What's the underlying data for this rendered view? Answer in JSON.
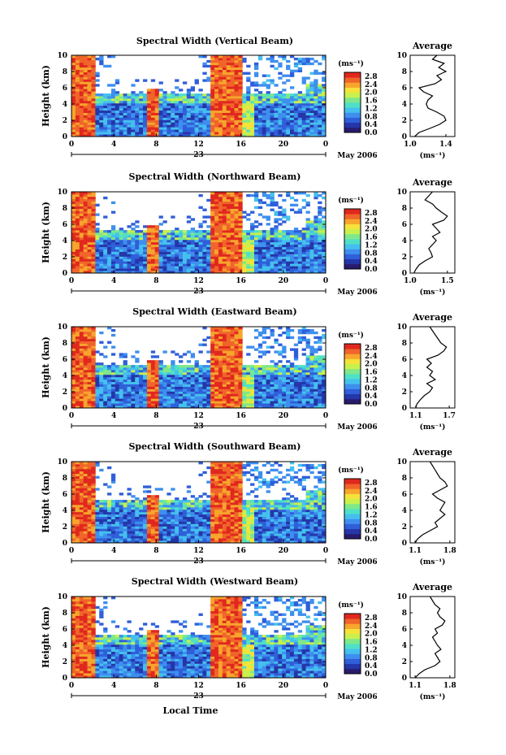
{
  "figure": {
    "x_axis_label": "Local Time",
    "date_label": "May 2006",
    "day_label": "23",
    "unit_label": "(ms⁻¹)",
    "average_title": "Average",
    "y_axis_label": "Height (km)"
  },
  "colors": {
    "colormap": [
      "#2a1a6b",
      "#2436a8",
      "#2f5fd9",
      "#3e8fee",
      "#45c0ee",
      "#4fe0c8",
      "#7ee88a",
      "#c8f04e",
      "#f5e23a",
      "#f7a52c",
      "#f0652a",
      "#e0281e"
    ]
  },
  "chart_data": [
    {
      "type": "heatmap",
      "title": "Spectral Width (Vertical Beam)",
      "xlabel": "",
      "ylabel": "Height (km)",
      "xlim": [
        0,
        24
      ],
      "ylim": [
        0,
        10
      ],
      "xticks": [
        "0",
        "4",
        "8",
        "12",
        "16",
        "20",
        "0"
      ],
      "yticks": [
        "0",
        "2",
        "4",
        "6",
        "8",
        "10"
      ],
      "colorbar": {
        "label": "(ms⁻¹)",
        "ticks": [
          "0.0",
          "0.4",
          "0.8",
          "1.2",
          "1.6",
          "2.0",
          "2.4",
          "2.8"
        ],
        "range": [
          0,
          3.0
        ]
      },
      "average": {
        "title": "Average",
        "xlabel": "(ms⁻¹)",
        "xticks": [
          "1.0",
          "1.4"
        ],
        "xlim": [
          1.0,
          1.5
        ],
        "heights": [
          0,
          0.5,
          1,
          1.5,
          2,
          2.5,
          3,
          3.5,
          4,
          4.5,
          5,
          5.5,
          6,
          6.5,
          7,
          7.5,
          8,
          8.5,
          9,
          9.5,
          10
        ],
        "values": [
          1.05,
          1.1,
          1.22,
          1.33,
          1.4,
          1.38,
          1.3,
          1.2,
          1.18,
          1.2,
          1.25,
          1.15,
          1.1,
          1.28,
          1.35,
          1.3,
          1.4,
          1.32,
          1.38,
          1.25,
          1.3
        ]
      }
    },
    {
      "type": "heatmap",
      "title": "Spectral Width (Northward Beam)",
      "xlabel": "",
      "ylabel": "Height (km)",
      "xlim": [
        0,
        24
      ],
      "ylim": [
        0,
        10
      ],
      "xticks": [
        "0",
        "4",
        "8",
        "12",
        "16",
        "20",
        "0"
      ],
      "yticks": [
        "0",
        "2",
        "4",
        "6",
        "8",
        "10"
      ],
      "colorbar": {
        "label": "(ms⁻¹)",
        "ticks": [
          "0.0",
          "0.4",
          "0.8",
          "1.2",
          "1.6",
          "2.0",
          "2.4",
          "2.8"
        ],
        "range": [
          0,
          3.0
        ]
      },
      "average": {
        "title": "Average",
        "xlabel": "(ms⁻¹)",
        "xticks": [
          "1.0",
          "1.5"
        ],
        "xlim": [
          1.0,
          1.6
        ],
        "heights": [
          0,
          0.5,
          1,
          1.5,
          2,
          2.5,
          3,
          3.5,
          4,
          4.5,
          5,
          5.5,
          6,
          6.5,
          7,
          7.5,
          8,
          8.5,
          9,
          9.5,
          10
        ],
        "values": [
          1.05,
          1.08,
          1.12,
          1.2,
          1.3,
          1.28,
          1.25,
          1.3,
          1.35,
          1.3,
          1.4,
          1.35,
          1.3,
          1.45,
          1.5,
          1.42,
          1.35,
          1.3,
          1.2,
          1.25,
          1.3
        ]
      }
    },
    {
      "type": "heatmap",
      "title": "Spectral Width (Eastward Beam)",
      "xlabel": "",
      "ylabel": "Height (km)",
      "xlim": [
        0,
        24
      ],
      "ylim": [
        0,
        10
      ],
      "xticks": [
        "0",
        "4",
        "8",
        "12",
        "16",
        "20",
        "0"
      ],
      "yticks": [
        "0",
        "2",
        "4",
        "6",
        "8",
        "10"
      ],
      "colorbar": {
        "label": "(ms⁻¹)",
        "ticks": [
          "0.0",
          "0.4",
          "0.8",
          "1.2",
          "1.6",
          "2.0",
          "2.4",
          "2.8"
        ],
        "range": [
          0,
          3.0
        ]
      },
      "average": {
        "title": "Average",
        "xlabel": "(ms⁻¹)",
        "xticks": [
          "1.1",
          "1.7"
        ],
        "xlim": [
          1.0,
          1.8
        ],
        "heights": [
          0,
          0.5,
          1,
          1.5,
          2,
          2.5,
          3,
          3.5,
          4,
          4.5,
          5,
          5.5,
          6,
          6.5,
          7,
          7.5,
          8,
          8.5,
          9,
          9.5,
          10
        ],
        "values": [
          1.1,
          1.12,
          1.18,
          1.25,
          1.35,
          1.4,
          1.3,
          1.45,
          1.35,
          1.4,
          1.3,
          1.38,
          1.3,
          1.5,
          1.6,
          1.65,
          1.55,
          1.5,
          1.45,
          1.4,
          1.35
        ]
      }
    },
    {
      "type": "heatmap",
      "title": "Spectral Width (Southward Beam)",
      "xlabel": "",
      "ylabel": "Height (km)",
      "xlim": [
        0,
        24
      ],
      "ylim": [
        0,
        10
      ],
      "xticks": [
        "0",
        "4",
        "8",
        "12",
        "16",
        "20",
        "0"
      ],
      "yticks": [
        "0",
        "2",
        "4",
        "6",
        "8",
        "10"
      ],
      "colorbar": {
        "label": "(ms⁻¹)",
        "ticks": [
          "0.0",
          "0.4",
          "0.8",
          "1.2",
          "1.6",
          "2.0",
          "2.4",
          "2.8"
        ],
        "range": [
          0,
          3.0
        ]
      },
      "average": {
        "title": "Average",
        "xlabel": "(ms⁻¹)",
        "xticks": [
          "1.1",
          "1.8"
        ],
        "xlim": [
          1.0,
          1.9
        ],
        "heights": [
          0,
          0.5,
          1,
          1.5,
          2,
          2.5,
          3,
          3.5,
          4,
          4.5,
          5,
          5.5,
          6,
          6.5,
          7,
          7.5,
          8,
          8.5,
          9,
          9.5,
          10
        ],
        "values": [
          1.1,
          1.15,
          1.25,
          1.4,
          1.55,
          1.5,
          1.6,
          1.7,
          1.6,
          1.65,
          1.7,
          1.55,
          1.45,
          1.6,
          1.75,
          1.7,
          1.6,
          1.55,
          1.5,
          1.45,
          1.4
        ]
      }
    },
    {
      "type": "heatmap",
      "title": "Spectral Width (Westward Beam)",
      "xlabel": "Local Time",
      "ylabel": "Height (km)",
      "xlim": [
        0,
        24
      ],
      "ylim": [
        0,
        10
      ],
      "xticks": [
        "0",
        "4",
        "8",
        "12",
        "16",
        "20",
        "0"
      ],
      "yticks": [
        "0",
        "2",
        "4",
        "6",
        "8",
        "10"
      ],
      "colorbar": {
        "label": "(ms⁻¹)",
        "ticks": [
          "0.0",
          "0.4",
          "0.8",
          "1.2",
          "1.6",
          "2.0",
          "2.4",
          "2.8"
        ],
        "range": [
          0,
          3.0
        ]
      },
      "average": {
        "title": "Average",
        "xlabel": "(ms⁻¹)",
        "xticks": [
          "1.1",
          "1.8"
        ],
        "xlim": [
          1.0,
          1.9
        ],
        "heights": [
          0,
          0.5,
          1,
          1.5,
          2,
          2.5,
          3,
          3.5,
          4,
          4.5,
          5,
          5.5,
          6,
          6.5,
          7,
          7.5,
          8,
          8.5,
          9,
          9.5,
          10
        ],
        "values": [
          1.1,
          1.18,
          1.3,
          1.5,
          1.6,
          1.55,
          1.5,
          1.62,
          1.55,
          1.5,
          1.45,
          1.55,
          1.5,
          1.65,
          1.7,
          1.6,
          1.55,
          1.6,
          1.5,
          1.45,
          1.4
        ]
      }
    }
  ]
}
